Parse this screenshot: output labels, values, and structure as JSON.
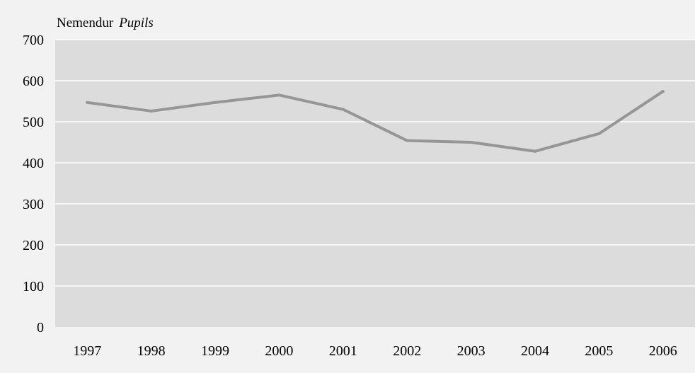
{
  "chart_data": {
    "type": "line",
    "title": "",
    "ylabel_main": "Nemendur",
    "ylabel_secondary": "Pupils",
    "xlabel": "",
    "categories": [
      "1997",
      "1998",
      "1999",
      "2000",
      "2001",
      "2002",
      "2003",
      "2004",
      "2005",
      "2006"
    ],
    "series": [
      {
        "values": [
          547,
          526,
          547,
          565,
          530,
          454,
          450,
          428,
          471,
          574
        ]
      }
    ],
    "ylim": [
      0,
      700
    ],
    "yticks": [
      "0",
      "100",
      "200",
      "300",
      "400",
      "500",
      "600",
      "700"
    ],
    "grid": true,
    "legend": "none"
  },
  "colors": {
    "page_background": "#f2f2f2",
    "plot_background": "#dcdcdc",
    "gridline": "#ffffff",
    "series_line": "#969696"
  }
}
